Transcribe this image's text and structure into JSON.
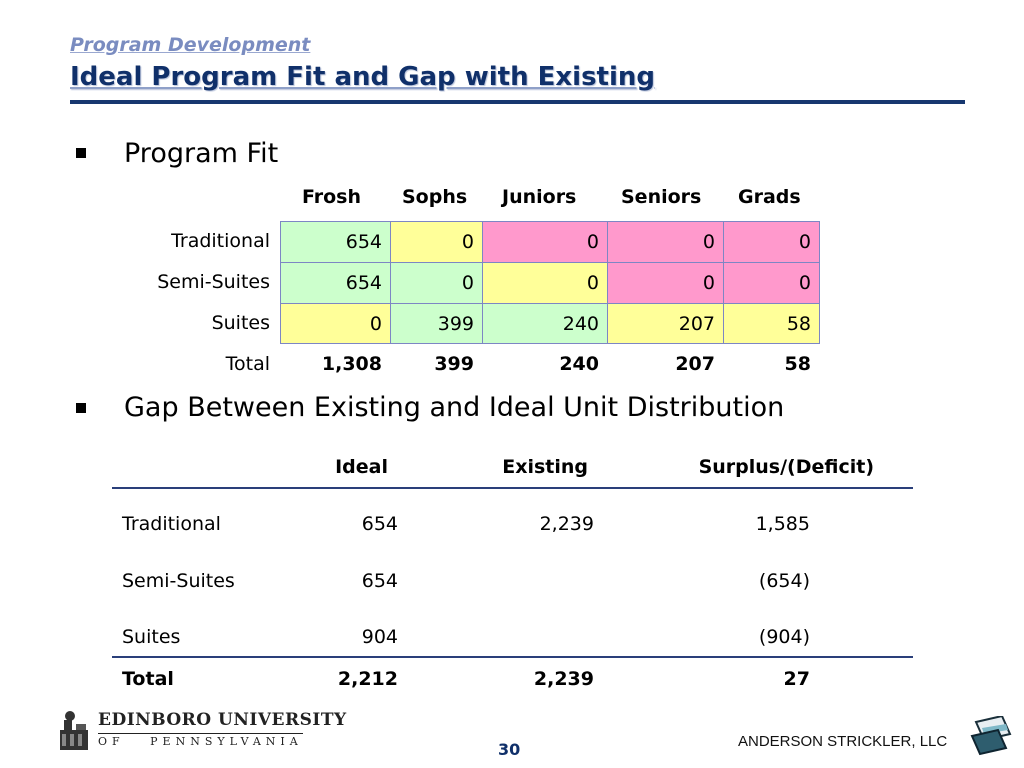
{
  "header": {
    "subtitle": "Program Development",
    "title": "Ideal Program Fit and Gap with Existing"
  },
  "section1": {
    "heading": "Program Fit",
    "columns": [
      "Frosh",
      "Sophs",
      "Juniors",
      "Seniors",
      "Grads"
    ],
    "rows": [
      {
        "label": "Traditional",
        "cells": [
          "654",
          "0",
          "0",
          "0",
          "0"
        ],
        "colors": [
          "green",
          "yellow",
          "pink",
          "pink",
          "pink"
        ]
      },
      {
        "label": "Semi-Suites",
        "cells": [
          "654",
          "0",
          "0",
          "0",
          "0"
        ],
        "colors": [
          "green",
          "green",
          "yellow",
          "pink",
          "pink"
        ]
      },
      {
        "label": "Suites",
        "cells": [
          "0",
          "399",
          "240",
          "207",
          "58"
        ],
        "colors": [
          "yellow",
          "green",
          "green",
          "yellow",
          "yellow"
        ]
      }
    ],
    "total": {
      "label": "Total",
      "cells": [
        "1,308",
        "399",
        "240",
        "207",
        "58"
      ]
    },
    "colors": {
      "green": "#ccffcc",
      "yellow": "#ffff99",
      "pink": "#ff99cc",
      "border": "#7d86c4"
    }
  },
  "section2": {
    "heading": "Gap Between Existing and Ideal Unit Distribution",
    "columns": [
      "Ideal",
      "Existing",
      "Surplus/(Deficit)"
    ],
    "rows": [
      {
        "label": "Traditional",
        "ideal": "654",
        "existing": "2,239",
        "surplus": "1,585"
      },
      {
        "label": "Semi-Suites",
        "ideal": "654",
        "existing": "",
        "surplus": "(654)"
      },
      {
        "label": "Suites",
        "ideal": "904",
        "existing": "",
        "surplus": "(904)"
      }
    ],
    "total": {
      "label": "Total",
      "ideal": "2,212",
      "existing": "2,239",
      "surplus": "27"
    }
  },
  "footer": {
    "university_name": "EDINBORO UNIVERSITY",
    "university_state": "OF   PENNSYLVANIA",
    "page_number": "30",
    "firm": "ANDERSON STRICKLER, LLC",
    "left_logo_icon": "edinboro-university-logo-icon",
    "right_logo_icon": "anderson-strickler-logo-icon"
  },
  "theme": {
    "title_color": "#10306a",
    "subtitle_color": "#7a8cc0",
    "rule_color": "#17376f"
  }
}
